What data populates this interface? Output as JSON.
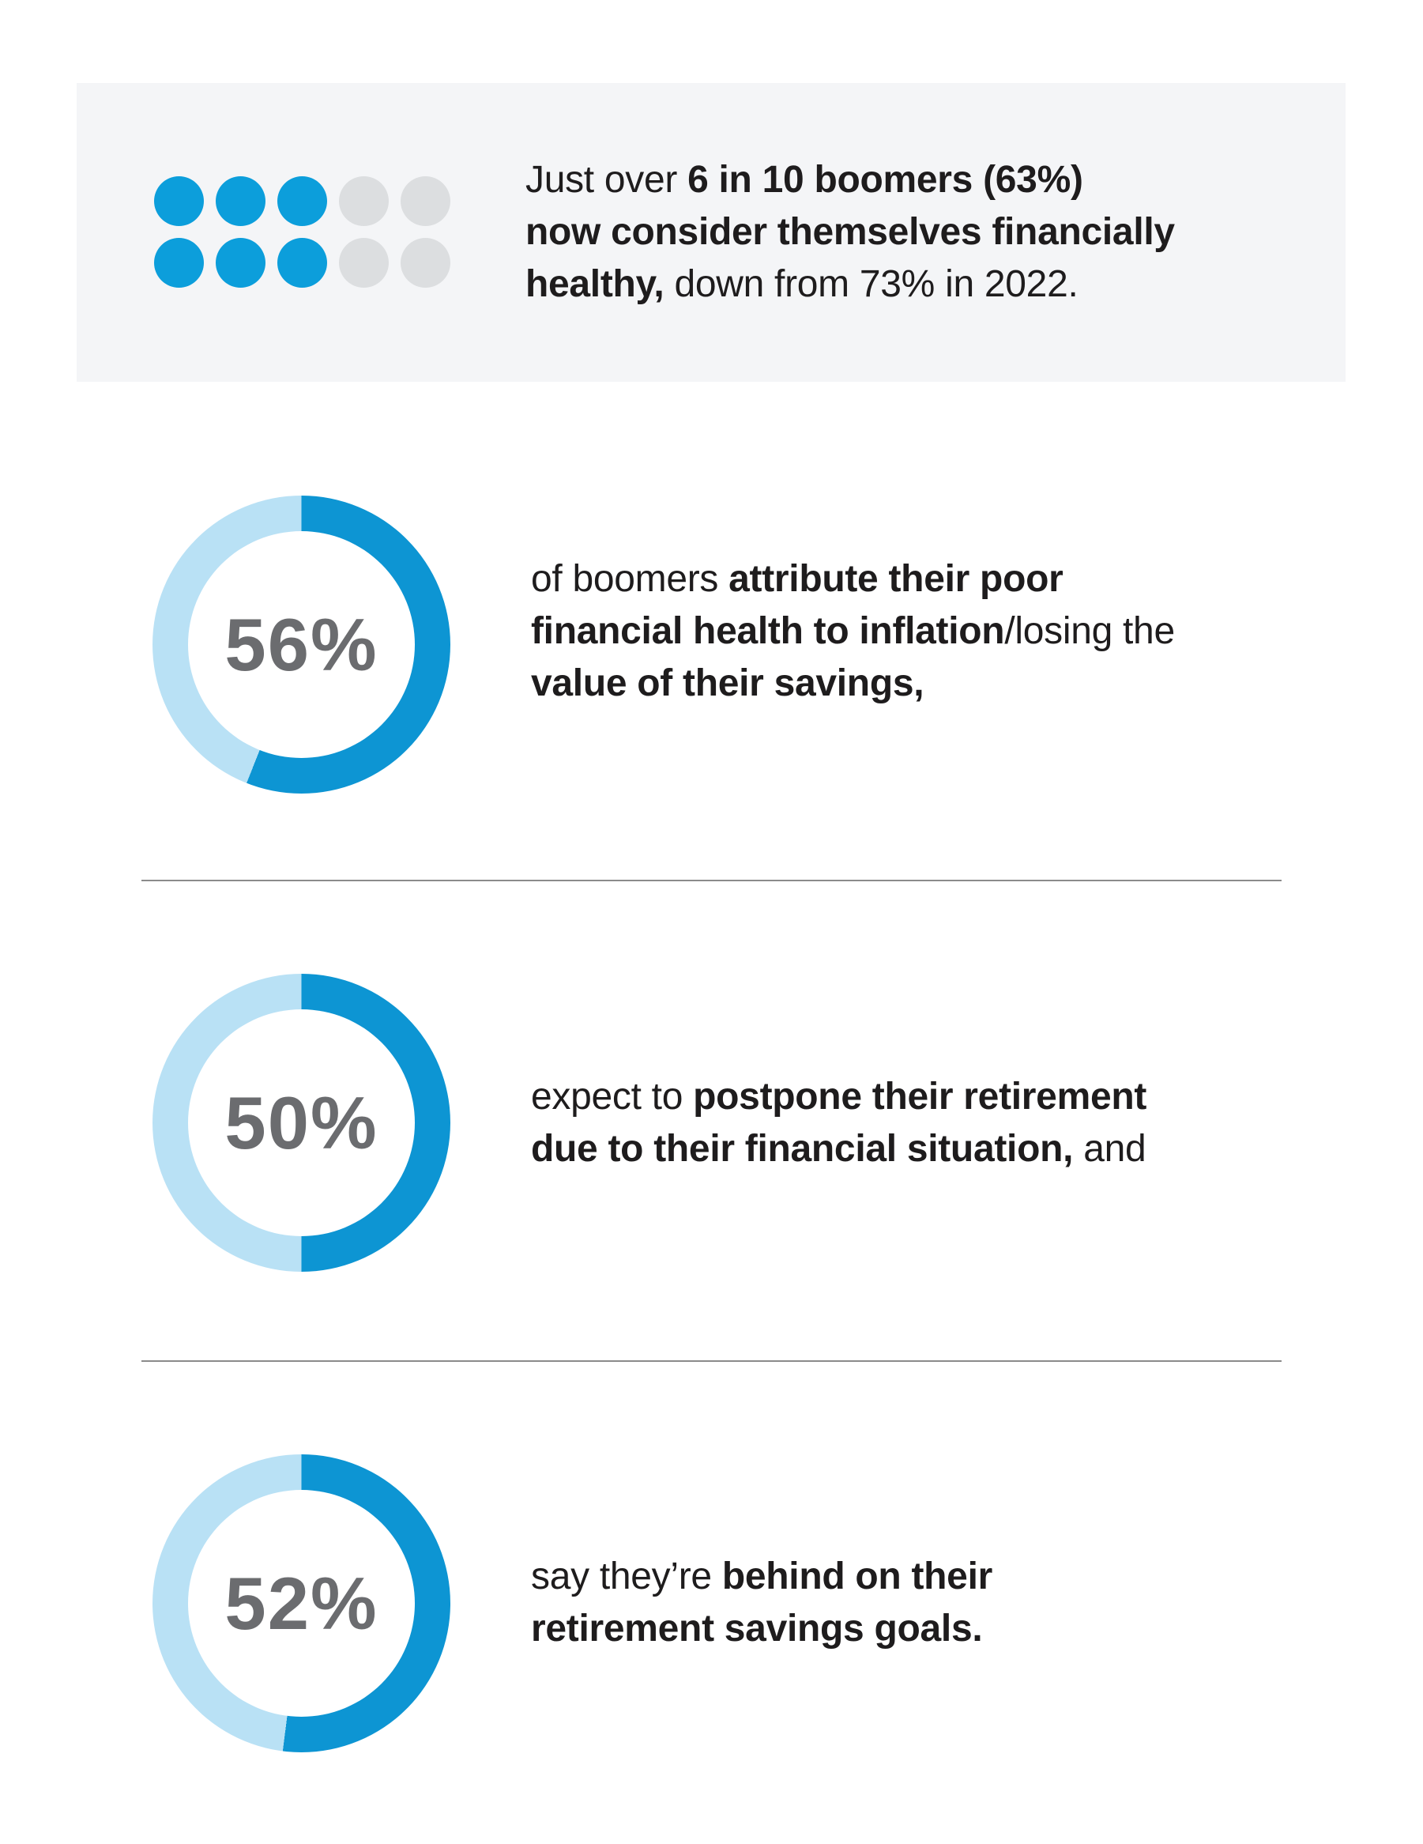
{
  "colors": {
    "accent_blue": "#0c9edb",
    "donut_fill": "#0d95d3",
    "donut_track": "#b9e1f5",
    "pictogram_empty": "#dcdee0",
    "header_bg": "#f4f5f7",
    "percent_text": "#6b6c6f",
    "body_text": "#1e1c1d",
    "divider": "#8b8b8b"
  },
  "header": {
    "pictogram": {
      "total": 10,
      "filled": 6,
      "rows": 2,
      "columns": 5
    },
    "headline_segments": [
      {
        "text": "Just over ",
        "bold": false
      },
      {
        "text": "6 in 10 boomers (63%)\nnow consider themselves financially\nhealthy,",
        "bold": true
      },
      {
        "text": " down from 73% in 2022.",
        "bold": false
      }
    ]
  },
  "sections": [
    {
      "value": 56,
      "percent_label": "56%",
      "text_segments": [
        {
          "text": "of boomers ",
          "bold": false
        },
        {
          "text": "attribute their poor\nfinancial health to inflation",
          "bold": true
        },
        {
          "text": "/losing the\n",
          "bold": false
        },
        {
          "text": "value of their savings,",
          "bold": true
        }
      ]
    },
    {
      "value": 50,
      "percent_label": "50%",
      "text_segments": [
        {
          "text": "expect to ",
          "bold": false
        },
        {
          "text": "postpone their retirement\ndue to their financial situation,",
          "bold": true
        },
        {
          "text": " and",
          "bold": false
        }
      ]
    },
    {
      "value": 52,
      "percent_label": "52%",
      "text_segments": [
        {
          "text": "say they’re ",
          "bold": false
        },
        {
          "text": "behind on their\nretirement savings goals.",
          "bold": true
        }
      ]
    }
  ],
  "chart_data": [
    {
      "type": "pictogram",
      "title": "Just over 6 in 10 boomers (63%) now consider themselves financially healthy, down from 73% in 2022.",
      "units_total": 10,
      "units_filled": 6,
      "value_pct": 63,
      "prior_value_pct": 73,
      "prior_year": "2022"
    },
    {
      "type": "donut",
      "value": 56,
      "remainder": 44,
      "label": "56%",
      "description": "of boomers attribute their poor financial health to inflation/losing the value of their savings"
    },
    {
      "type": "donut",
      "value": 50,
      "remainder": 50,
      "label": "50%",
      "description": "expect to postpone their retirement due to their financial situation"
    },
    {
      "type": "donut",
      "value": 52,
      "remainder": 48,
      "label": "52%",
      "description": "say they’re behind on their retirement savings goals."
    }
  ]
}
